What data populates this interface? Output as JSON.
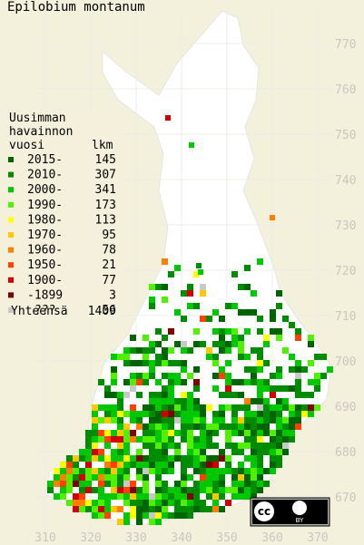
{
  "title": "Epilobium montanum",
  "legend": {
    "heading": [
      "Uusimman",
      "havainnon"
    ],
    "col_year": "vuosi",
    "col_count": "lkm",
    "rows": [
      {
        "label": "2015-",
        "count": 145,
        "color": "#006400"
      },
      {
        "label": "2010-",
        "count": 307,
        "color": "#008c00"
      },
      {
        "label": "2000-",
        "count": 341,
        "color": "#00c800"
      },
      {
        "label": "1990-",
        "count": 173,
        "color": "#50f000"
      },
      {
        "label": "1980-",
        "count": 113,
        "color": "#ffff00"
      },
      {
        "label": "1970-",
        "count": 95,
        "color": "#ffc800"
      },
      {
        "label": "1960-",
        "count": 78,
        "color": "#ff8000"
      },
      {
        "label": "1950-",
        "count": 21,
        "color": "#ff4000"
      },
      {
        "label": "1900-",
        "count": 77,
        "color": "#d00000"
      },
      {
        "label": "-1899",
        "count": 3,
        "color": "#800000"
      },
      {
        "label": "???",
        "count": 56,
        "color": "#c8c8c8"
      }
    ],
    "total_label": "Yhteensä",
    "total": 1409
  },
  "grid": {
    "northing": [
      770,
      760,
      750,
      740,
      730,
      720,
      710,
      700,
      690,
      680,
      670
    ],
    "easting": [
      310,
      320,
      330,
      340,
      350,
      360,
      370
    ]
  },
  "license": {
    "cc": "cc",
    "by": "BY"
  }
}
